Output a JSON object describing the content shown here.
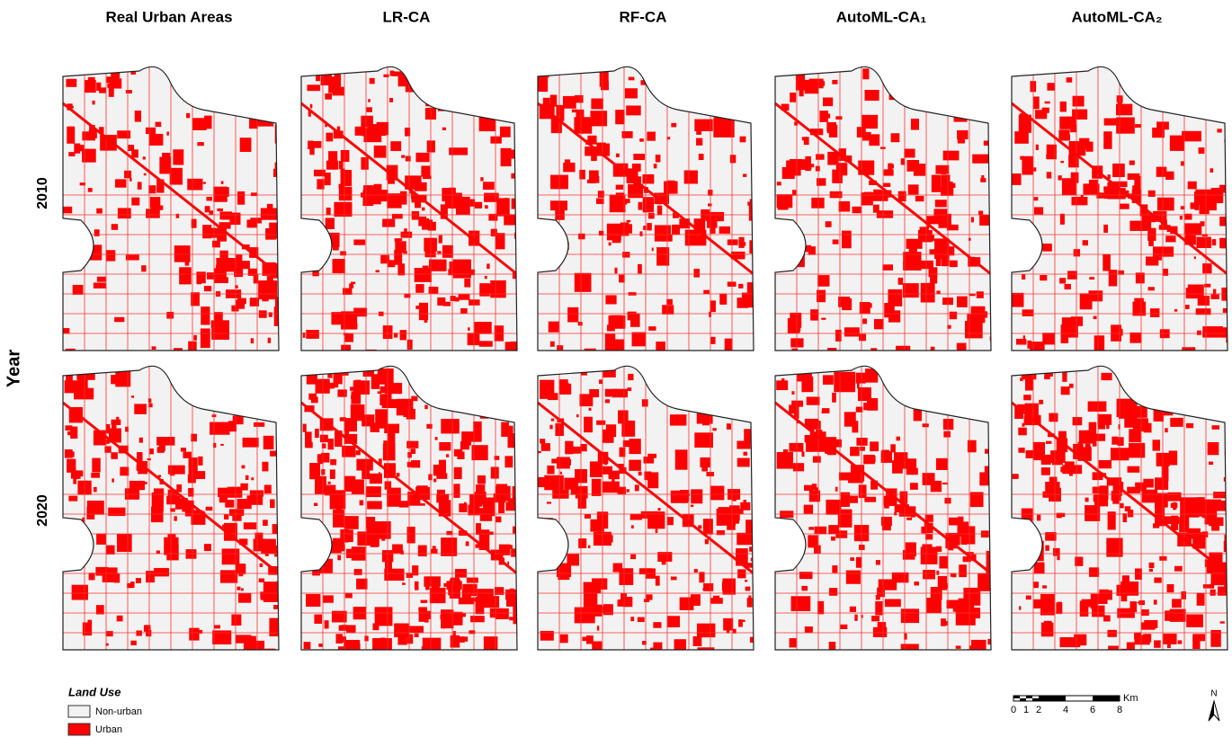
{
  "header": {
    "columns": [
      "Real Urban Areas",
      "LR-CA",
      "RF-CA",
      "AutoML-CA₁",
      "AutoML-CA₂"
    ],
    "rows": [
      "2010",
      "2020"
    ],
    "row_axis": "Year"
  },
  "legend": {
    "title": "Land Use",
    "items": [
      "Non-urban",
      "Urban"
    ]
  },
  "scale_bar": {
    "labels": [
      "0",
      "1",
      "2",
      "4",
      "6",
      "8"
    ],
    "unit": "Km"
  },
  "north": "N"
}
